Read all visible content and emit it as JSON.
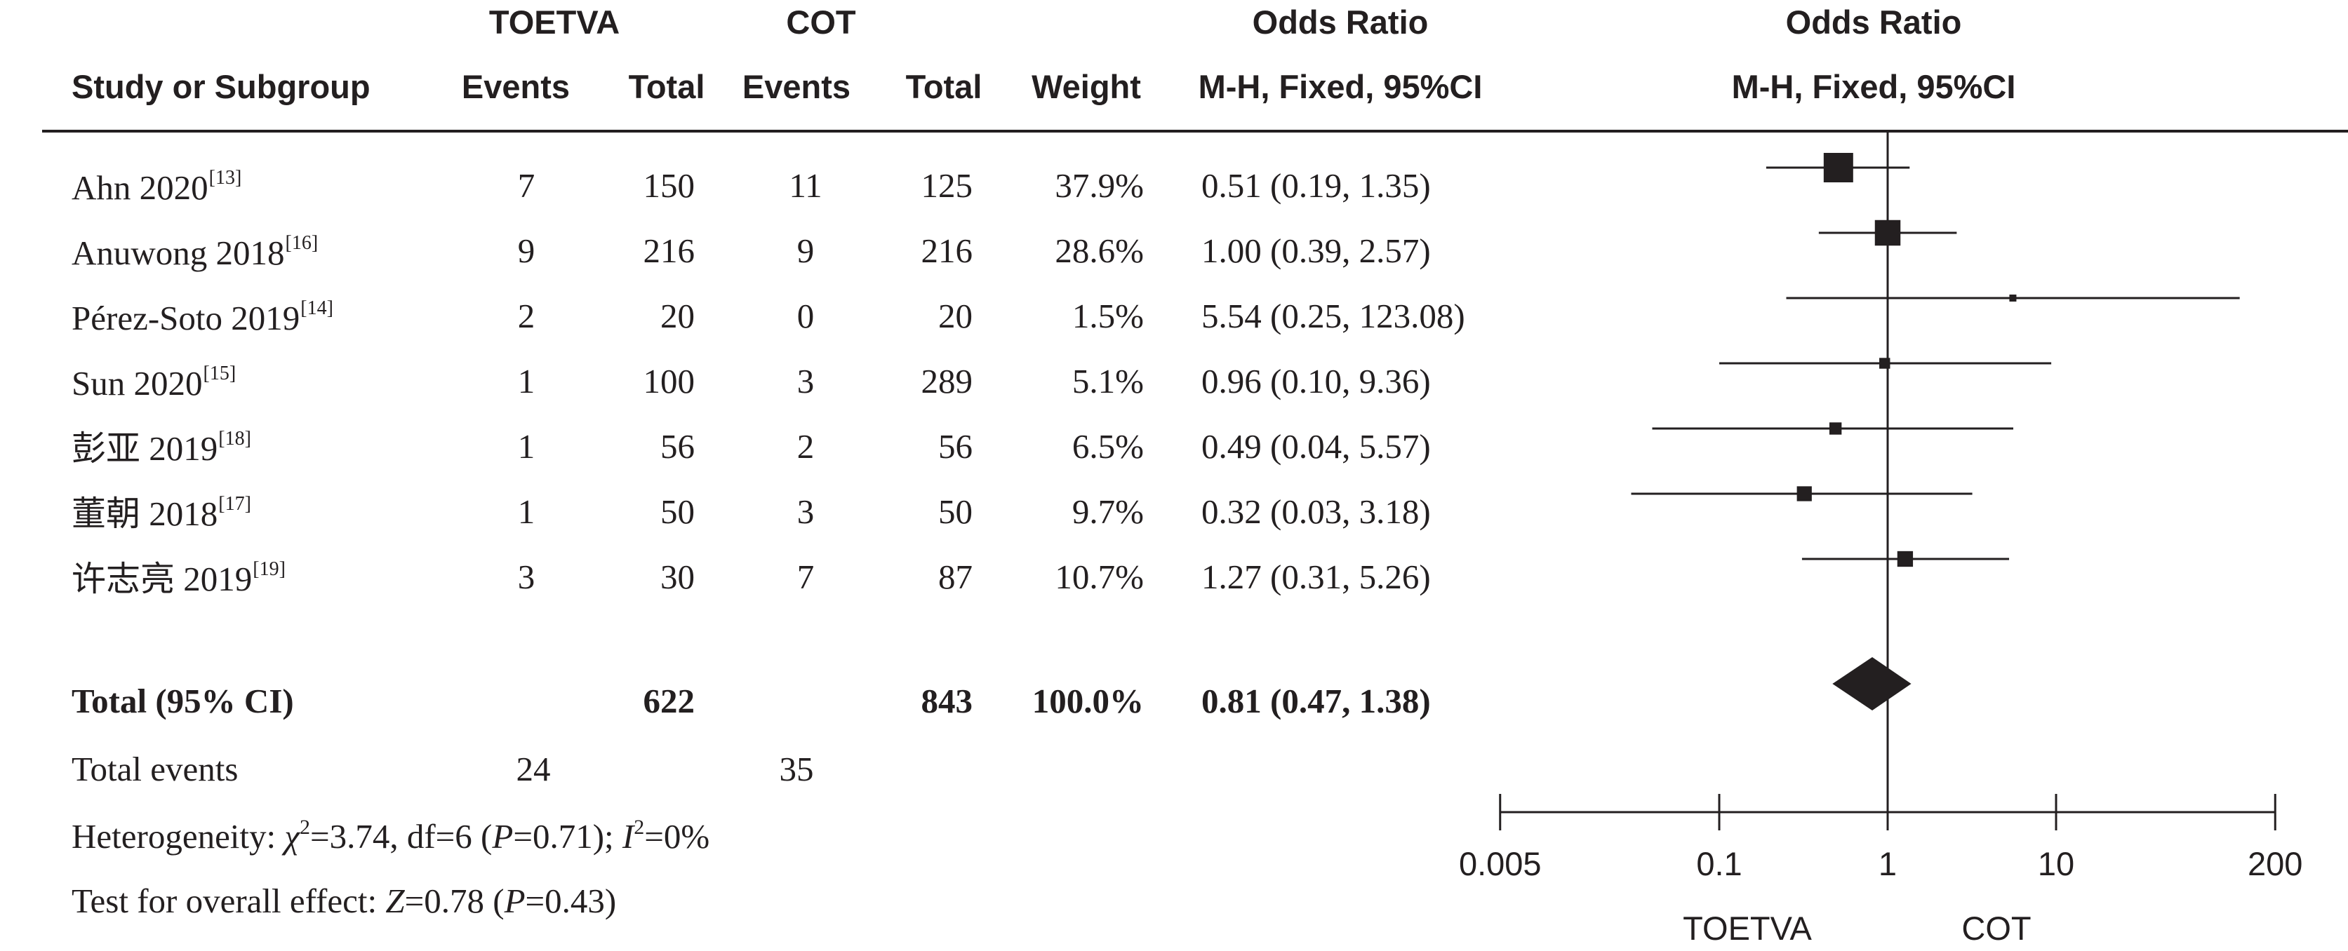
{
  "header": {
    "group1": "TOETVA",
    "group2": "COT",
    "col_study": "Study or Subgroup",
    "col_events1": "Events",
    "col_total1": "Total",
    "col_events2": "Events",
    "col_total2": "Total",
    "col_weight": "Weight",
    "or_title": "Odds Ratio",
    "or_method": "M-H, Fixed, 95%CI",
    "plot_title": "Odds Ratio",
    "plot_method": "M-H, Fixed, 95%CI"
  },
  "rows": [
    {
      "study": "Ahn 2020",
      "ref": "[13]",
      "e1": "7",
      "t1": "150",
      "e2": "11",
      "t2": "125",
      "weight": "37.9%",
      "ci": "0.51 (0.19, 1.35)"
    },
    {
      "study": "Anuwong 2018",
      "ref": "[16]",
      "e1": "9",
      "t1": "216",
      "e2": "9",
      "t2": "216",
      "weight": "28.6%",
      "ci": "1.00 (0.39, 2.57)"
    },
    {
      "study": "Pérez-Soto 2019",
      "ref": "[14]",
      "e1": "2",
      "t1": "20",
      "e2": "0",
      "t2": "20",
      "weight": "1.5%",
      "ci": "5.54 (0.25, 123.08)"
    },
    {
      "study": "Sun 2020",
      "ref": "[15]",
      "e1": "1",
      "t1": "100",
      "e2": "3",
      "t2": "289",
      "weight": "5.1%",
      "ci": "0.96 (0.10, 9.36)"
    },
    {
      "study": "彭亚 2019",
      "ref": "[18]",
      "e1": "1",
      "t1": "56",
      "e2": "2",
      "t2": "56",
      "weight": "6.5%",
      "ci": "0.49 (0.04, 5.57)"
    },
    {
      "study": "董朝 2018",
      "ref": "[17]",
      "e1": "1",
      "t1": "50",
      "e2": "3",
      "t2": "50",
      "weight": "9.7%",
      "ci": "0.32 (0.03, 3.18)"
    },
    {
      "study": "许志亮 2019",
      "ref": "[19]",
      "e1": "3",
      "t1": "30",
      "e2": "7",
      "t2": "87",
      "weight": "10.7%",
      "ci": "1.27 (0.31, 5.26)"
    }
  ],
  "total": {
    "label": "Total (95% CI)",
    "t1": "622",
    "t2": "843",
    "weight": "100.0%",
    "ci": "0.81 (0.47, 1.38)"
  },
  "total_events": {
    "label": "Total events",
    "e1": "24",
    "e2": "35"
  },
  "heterogeneity": {
    "prefix": "Heterogeneity: ",
    "chi_symbol": "χ",
    "chi_exp": "2",
    "chi_value": "=3.74, df=6 (",
    "p_symbol": "P",
    "p_value": "=0.71); ",
    "i_symbol": "I",
    "i_exp": "2",
    "i_value": "=0%"
  },
  "overall_effect": {
    "prefix": "Test for overall effect: ",
    "z_symbol": "Z",
    "z_value": "=0.78 (",
    "p_symbol": "P",
    "p_value": "=0.43)"
  },
  "chart_data": {
    "type": "scatter",
    "subtype": "forest_plot",
    "scale": "log",
    "x_ticks": [
      0.005,
      0.1,
      1,
      10,
      200
    ],
    "x_tick_labels": [
      "0.005",
      "0.1",
      "1",
      "10",
      "200"
    ],
    "xlim": [
      0.005,
      200
    ],
    "reference_line": 1,
    "favours_left": "TOETVA",
    "favours_right": "COT",
    "studies": [
      {
        "or": 0.51,
        "lower": 0.19,
        "upper": 1.35,
        "weight": 37.9
      },
      {
        "or": 1.0,
        "lower": 0.39,
        "upper": 2.57,
        "weight": 28.6
      },
      {
        "or": 5.54,
        "lower": 0.25,
        "upper": 123.08,
        "weight": 1.5
      },
      {
        "or": 0.96,
        "lower": 0.1,
        "upper": 9.36,
        "weight": 5.1
      },
      {
        "or": 0.49,
        "lower": 0.04,
        "upper": 5.57,
        "weight": 6.5
      },
      {
        "or": 0.32,
        "lower": 0.03,
        "upper": 3.18,
        "weight": 9.7
      },
      {
        "or": 1.27,
        "lower": 0.31,
        "upper": 5.26,
        "weight": 10.7
      }
    ],
    "pooled": {
      "or": 0.81,
      "lower": 0.47,
      "upper": 1.38
    },
    "mark_color": "#231f20"
  }
}
